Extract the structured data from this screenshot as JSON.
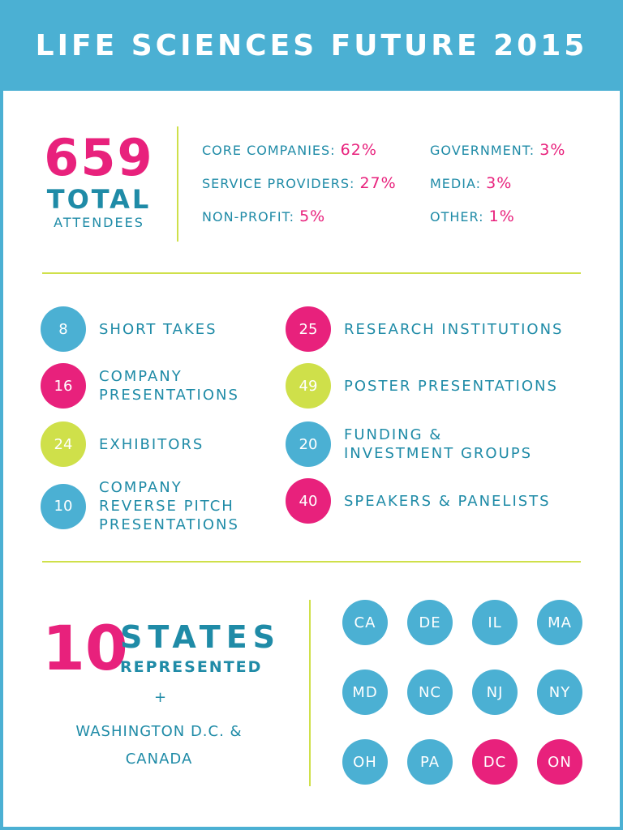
{
  "title": "LIFE SCIENCES FUTURE 2015",
  "attendees": {
    "number": "659",
    "word": "TOTAL",
    "sub": "ATTENDEES"
  },
  "breakdown": [
    {
      "label": "CORE COMPANIES:",
      "pct": "62%"
    },
    {
      "label": "SERVICE PROVIDERS:",
      "pct": "27%"
    },
    {
      "label": "NON-PROFIT:",
      "pct": "5%"
    },
    {
      "label": "GOVERNMENT:",
      "pct": "3%"
    },
    {
      "label": "MEDIA:",
      "pct": "3%"
    },
    {
      "label": "OTHER:",
      "pct": "1%"
    }
  ],
  "stats": [
    {
      "value": "8",
      "label": "SHORT TAKES",
      "color": "#4bb0d3"
    },
    {
      "value": "16",
      "label": "COMPANY\nPRESENTATIONS",
      "color": "#e8217c"
    },
    {
      "value": "24",
      "label": "EXHIBITORS",
      "color": "#cfe04a"
    },
    {
      "value": "10",
      "label": "COMPANY\nREVERSE PITCH\nPRESENTATIONS",
      "color": "#4bb0d3"
    },
    {
      "value": "25",
      "label": "RESEARCH INSTITUTIONS",
      "color": "#e8217c"
    },
    {
      "value": "49",
      "label": "POSTER PRESENTATIONS",
      "color": "#cfe04a"
    },
    {
      "value": "20",
      "label": "FUNDING &\nINVESTMENT GROUPS",
      "color": "#4bb0d3"
    },
    {
      "value": "40",
      "label": "SPEAKERS & PANELISTS",
      "color": "#e8217c"
    }
  ],
  "states_block": {
    "number": "10",
    "word": "STATES",
    "sub": "REPRESENTED",
    "plus": "+",
    "extra_line1": "WASHINGTON D.C. &",
    "extra_line2": "CANADA"
  },
  "states": [
    {
      "code": "CA",
      "color": "#4bb0d3"
    },
    {
      "code": "DE",
      "color": "#4bb0d3"
    },
    {
      "code": "IL",
      "color": "#4bb0d3"
    },
    {
      "code": "MA",
      "color": "#4bb0d3"
    },
    {
      "code": "MD",
      "color": "#4bb0d3"
    },
    {
      "code": "NC",
      "color": "#4bb0d3"
    },
    {
      "code": "NJ",
      "color": "#4bb0d3"
    },
    {
      "code": "NY",
      "color": "#4bb0d3"
    },
    {
      "code": "OH",
      "color": "#4bb0d3"
    },
    {
      "code": "PA",
      "color": "#4bb0d3"
    },
    {
      "code": "DC",
      "color": "#e8217c"
    },
    {
      "code": "ON",
      "color": "#e8217c"
    }
  ],
  "colors": {
    "blue": "#4bb0d3",
    "teal_text": "#1f8ba7",
    "pink": "#e8217c",
    "lime": "#cfe04a"
  }
}
